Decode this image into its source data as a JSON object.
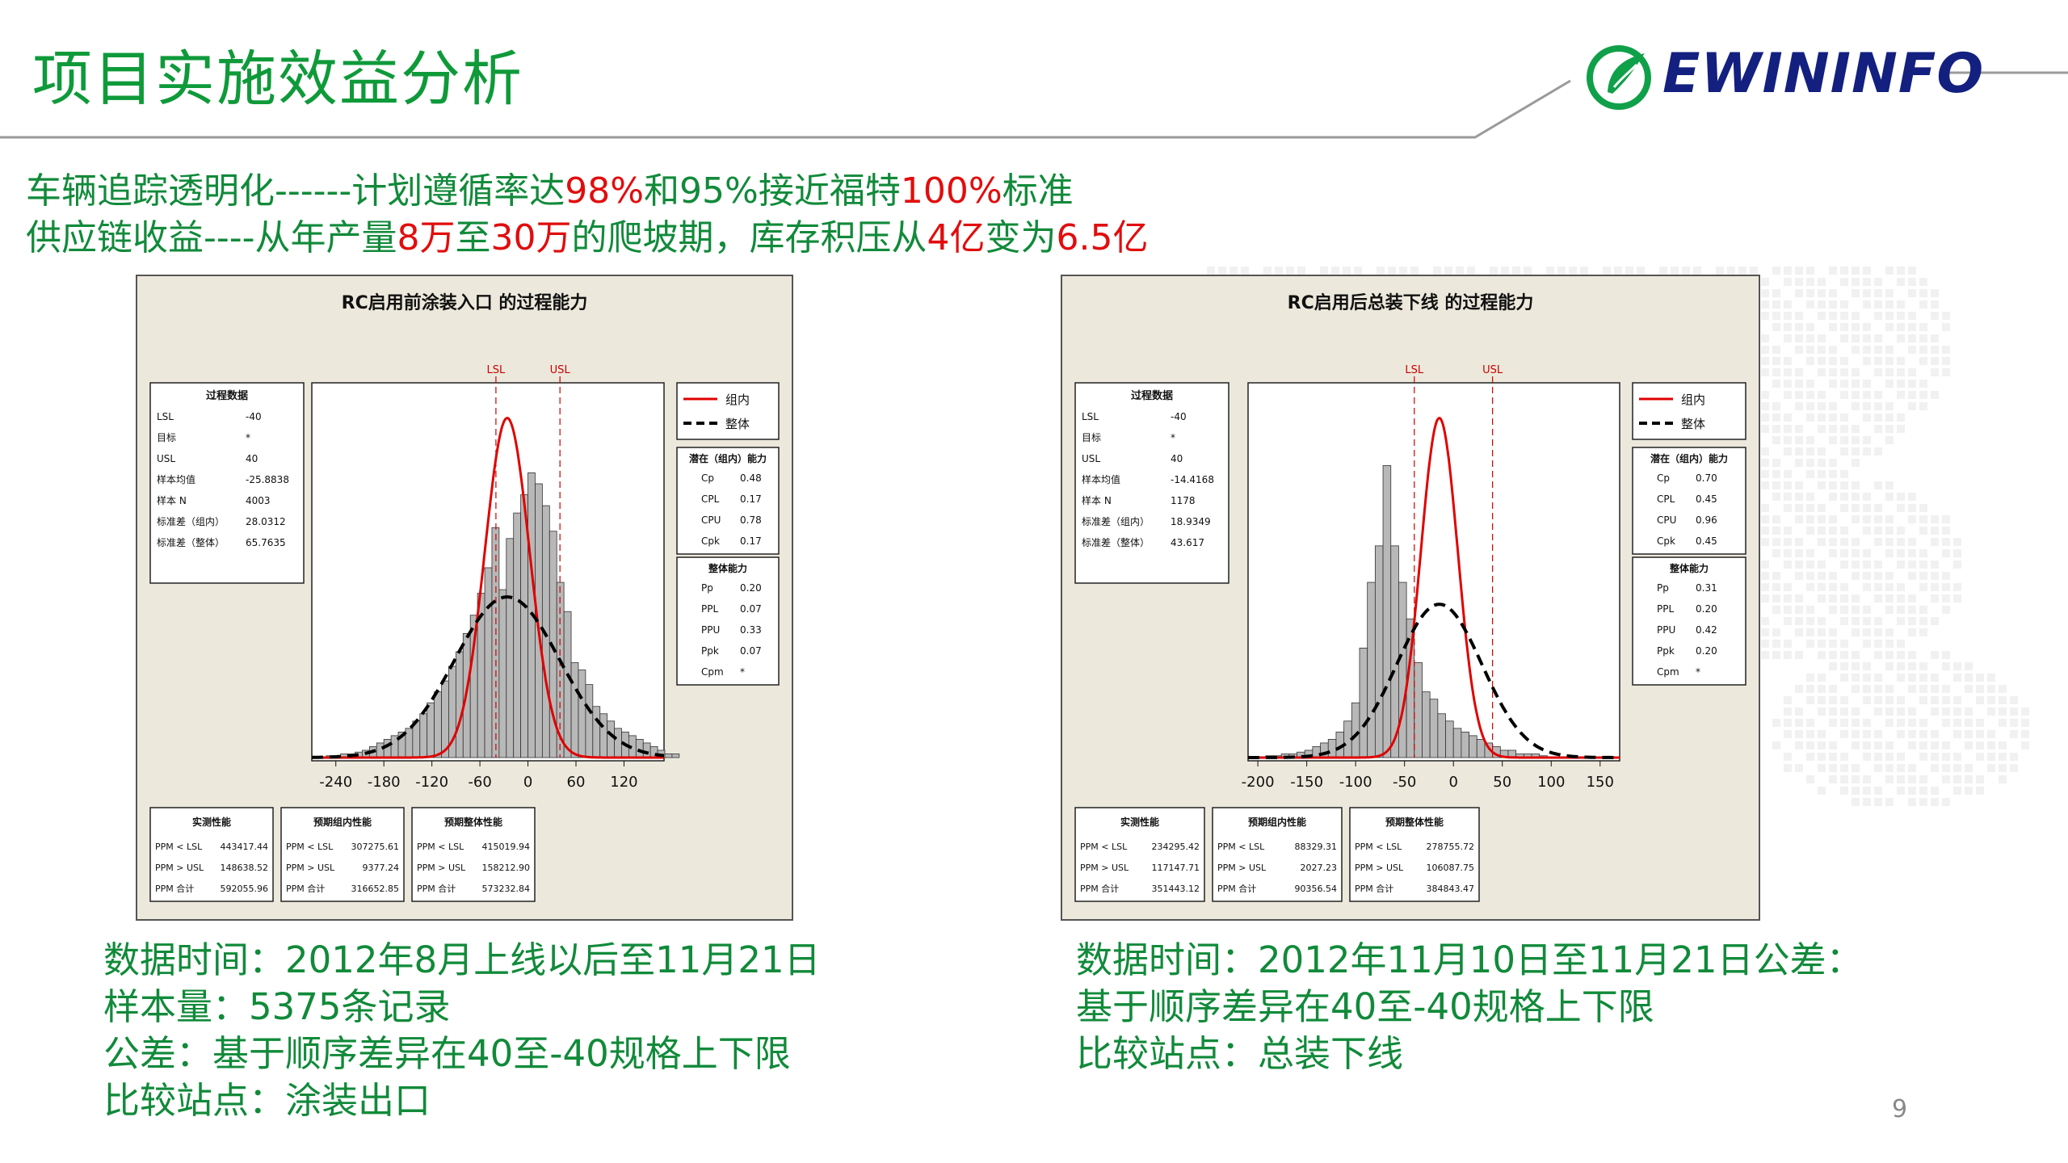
{
  "title": "项目实施效益分析",
  "logo": {
    "text": "EWININFO"
  },
  "headline": {
    "line1": [
      {
        "text": "车辆追踪透明化------计划遵循率达",
        "red": false
      },
      {
        "text": "98%",
        "red": true
      },
      {
        "text": "和95%接近福特",
        "red": false
      },
      {
        "text": "100%",
        "red": true
      },
      {
        "text": "标准",
        "red": false
      }
    ],
    "line2": [
      {
        "text": "供应链收益----从年产量",
        "red": false
      },
      {
        "text": "8万",
        "red": true
      },
      {
        "text": "至",
        "red": false
      },
      {
        "text": "30万",
        "red": true
      },
      {
        "text": "的爬坡期，库存积压从",
        "red": false
      },
      {
        "text": "4亿",
        "red": true
      },
      {
        "text": "变为",
        "red": false
      },
      {
        "text": "6.5亿",
        "red": true
      }
    ]
  },
  "caption_left": [
    "数据时间：2012年8月上线以后至11月21日",
    "样本量：5375条记录",
    "公差：基于顺序差异在40至-40规格上下限",
    "比较站点：涂装出口"
  ],
  "caption_right": [
    "数据时间：2012年11月10日至11月21日公差：",
    "基于顺序差异在40至-40规格上下限",
    "比较站点：总装下线"
  ],
  "page_number": "9",
  "colors": {
    "green": "#0f9a3a",
    "red": "#e10d0d",
    "navy": "#13207f",
    "panel_bg": "#ece9dc"
  },
  "chart_data": [
    {
      "type": "bar",
      "title": "RC启用前涂装入口 的过程能力",
      "spec_labels": [
        "LSL",
        "USL"
      ],
      "lsl": -40,
      "usl": 40,
      "xlim": [
        -270,
        170
      ],
      "xticks": [
        -240,
        -180,
        -120,
        -60,
        0,
        60,
        120
      ],
      "bins_start": -252,
      "bin_width": 9,
      "values": [
        0.5,
        0.5,
        1,
        1,
        1.5,
        2,
        3,
        4,
        5,
        6,
        7,
        8,
        10,
        12,
        15,
        18,
        21,
        25,
        29,
        34,
        39,
        45,
        52,
        63,
        46,
        60,
        67,
        72,
        78,
        75,
        69,
        62,
        48,
        40,
        26,
        24,
        20,
        14,
        12,
        10,
        8,
        7,
        6,
        5,
        4,
        3,
        2,
        1,
        1
      ],
      "ymax": 100,
      "curves": [
        {
          "name": "组内",
          "mean": -25.8838,
          "sd": 28.0312,
          "peak": 93
        },
        {
          "name": "整体",
          "mean": -25.8838,
          "sd": 65.7635,
          "peak": 44
        }
      ],
      "legend": [
        "组内",
        "整体"
      ],
      "process_data": {
        "title": "过程数据",
        "rows": [
          [
            "LSL",
            "-40"
          ],
          [
            "目标",
            "*"
          ],
          [
            "USL",
            "40"
          ],
          [
            "样本均值",
            "-25.8838"
          ],
          [
            "样本 N",
            "4003"
          ],
          [
            "标准差（组内）",
            "28.0312"
          ],
          [
            "标准差（整体）",
            "65.7635"
          ]
        ]
      },
      "within": {
        "title": "潜在（组内）能力",
        "rows": [
          [
            "Cp",
            "0.48"
          ],
          [
            "CPL",
            "0.17"
          ],
          [
            "CPU",
            "0.78"
          ],
          [
            "Cpk",
            "0.17"
          ]
        ]
      },
      "overall": {
        "title": "整体能力",
        "rows": [
          [
            "Pp",
            "0.20"
          ],
          [
            "PPL",
            "0.07"
          ],
          [
            "PPU",
            "0.33"
          ],
          [
            "Ppk",
            "0.07"
          ],
          [
            "Cpm",
            "*"
          ]
        ]
      },
      "perf": [
        {
          "title": "实测性能",
          "rows": [
            [
              "PPM < LSL",
              "443417.44"
            ],
            [
              "PPM > USL",
              "148638.52"
            ],
            [
              "PPM 合计",
              "592055.96"
            ]
          ]
        },
        {
          "title": "预期组内性能",
          "rows": [
            [
              "PPM < LSL",
              "307275.61"
            ],
            [
              "PPM > USL",
              "9377.24"
            ],
            [
              "PPM 合计",
              "316652.85"
            ]
          ]
        },
        {
          "title": "预期整体性能",
          "rows": [
            [
              "PPM < LSL",
              "415019.94"
            ],
            [
              "PPM > USL",
              "158212.90"
            ],
            [
              "PPM 合计",
              "573232.84"
            ]
          ]
        }
      ]
    },
    {
      "type": "bar",
      "title": "RC启用后总装下线 的过程能力",
      "spec_labels": [
        "LSL",
        "USL"
      ],
      "lsl": -40,
      "usl": 40,
      "xlim": [
        -210,
        170
      ],
      "xticks": [
        -200,
        -150,
        -100,
        -50,
        0,
        50,
        100,
        150
      ],
      "bins_start": -192,
      "bin_width": 8,
      "values": [
        0.5,
        0.5,
        1,
        1,
        1.5,
        2,
        3,
        4,
        5,
        7,
        10,
        15,
        30,
        48,
        58,
        80,
        58,
        48,
        38,
        26,
        18,
        16,
        12,
        10,
        8,
        7,
        6,
        5,
        4,
        3,
        2,
        2,
        1,
        1,
        1,
        0.5
      ],
      "ymax": 100,
      "curves": [
        {
          "name": "组内",
          "mean": -14.4168,
          "sd": 18.9349,
          "peak": 93
        },
        {
          "name": "整体",
          "mean": -14.4168,
          "sd": 43.617,
          "peak": 42
        }
      ],
      "legend": [
        "组内",
        "整体"
      ],
      "process_data": {
        "title": "过程数据",
        "rows": [
          [
            "LSL",
            "-40"
          ],
          [
            "目标",
            "*"
          ],
          [
            "USL",
            "40"
          ],
          [
            "样本均值",
            "-14.4168"
          ],
          [
            "样本 N",
            "1178"
          ],
          [
            "标准差（组内）",
            "18.9349"
          ],
          [
            "标准差（整体）",
            "43.617"
          ]
        ]
      },
      "within": {
        "title": "潜在（组内）能力",
        "rows": [
          [
            "Cp",
            "0.70"
          ],
          [
            "CPL",
            "0.45"
          ],
          [
            "CPU",
            "0.96"
          ],
          [
            "Cpk",
            "0.45"
          ]
        ]
      },
      "overall": {
        "title": "整体能力",
        "rows": [
          [
            "Pp",
            "0.31"
          ],
          [
            "PPL",
            "0.20"
          ],
          [
            "PPU",
            "0.42"
          ],
          [
            "Ppk",
            "0.20"
          ],
          [
            "Cpm",
            "*"
          ]
        ]
      },
      "perf": [
        {
          "title": "实测性能",
          "rows": [
            [
              "PPM < LSL",
              "234295.42"
            ],
            [
              "PPM > USL",
              "117147.71"
            ],
            [
              "PPM 合计",
              "351443.12"
            ]
          ]
        },
        {
          "title": "预期组内性能",
          "rows": [
            [
              "PPM < LSL",
              "88329.31"
            ],
            [
              "PPM > USL",
              "2027.23"
            ],
            [
              "PPM 合计",
              "90356.54"
            ]
          ]
        },
        {
          "title": "预期整体性能",
          "rows": [
            [
              "PPM < LSL",
              "278755.72"
            ],
            [
              "PPM > USL",
              "106087.75"
            ],
            [
              "PPM 合计",
              "384843.47"
            ]
          ]
        }
      ]
    }
  ]
}
